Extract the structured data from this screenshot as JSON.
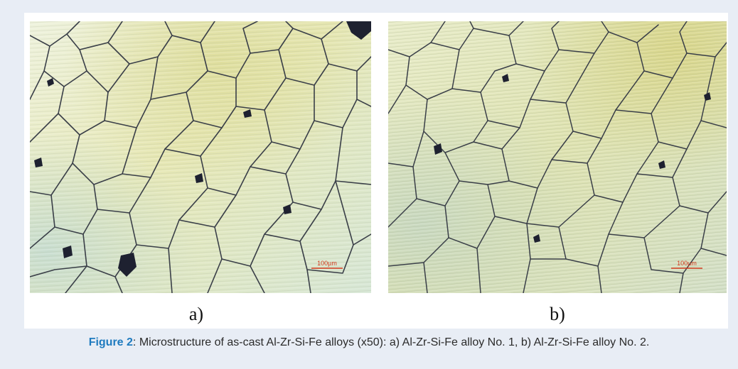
{
  "figure": {
    "panels": [
      {
        "id": "a",
        "label": "a)",
        "scale_bar": "100µm"
      },
      {
        "id": "b",
        "label": "b)",
        "scale_bar": "100µm"
      }
    ],
    "caption": {
      "figure_ref": "Figure 2",
      "text": ": Microstructure of as-cast Al-Zr-Si-Fe alloys (x50):  a) Al-Zr-Si-Fe alloy No. 1, b) Al-Zr-Si-Fe alloy No. 2."
    }
  },
  "colors": {
    "page_background": "#e8edf5",
    "figure_background": "#ffffff",
    "figure_ref": "#1f7bbf",
    "caption_text": "#2b2b2b",
    "scale_bar": "#d23a1e",
    "grain_boundary": "#3a3f48",
    "void": "#1e2130"
  }
}
